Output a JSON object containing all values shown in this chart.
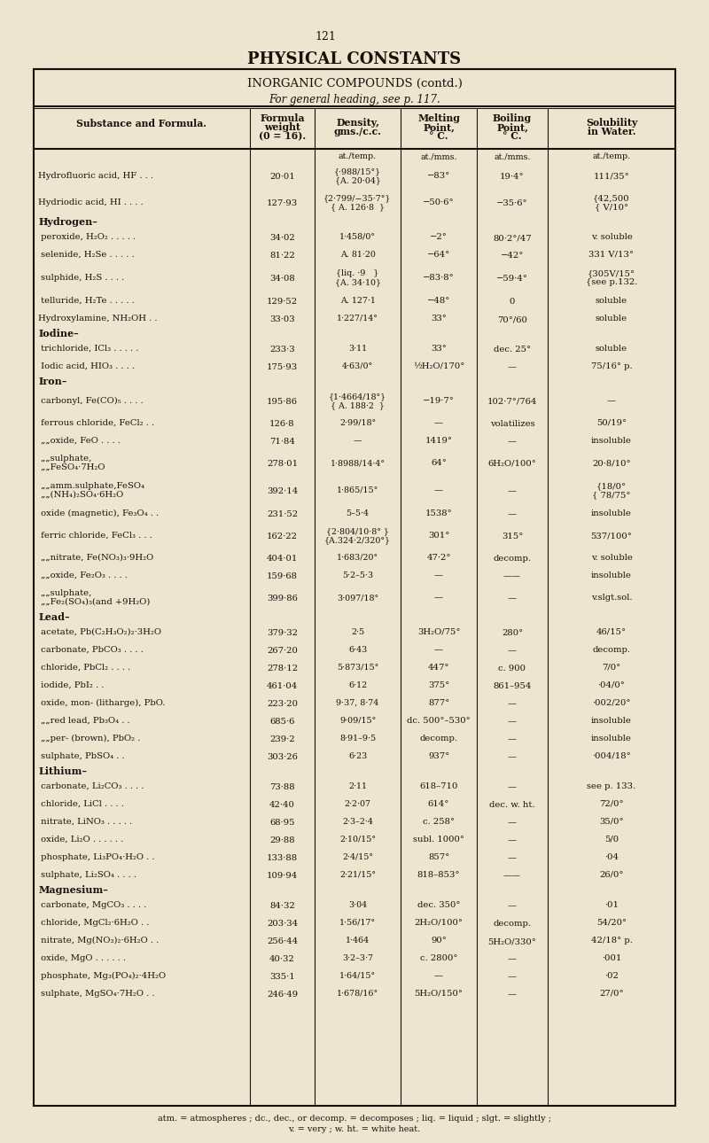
{
  "page_num": "121",
  "main_title": "PHYSICAL CONSTANTS",
  "table_title": "INORGANIC COMPOUNDS (contd.)",
  "table_subtitle": "For general heading, see p. 117.",
  "bg_color": "#EDE5D0",
  "text_color": "#1a1008",
  "footer": "atm. = atmospheres ; dc., dec., or decomp. = decomposes ; liq. = liquid ; slgt. = slightly ;\nv. = very ; w. ht. = white heat."
}
